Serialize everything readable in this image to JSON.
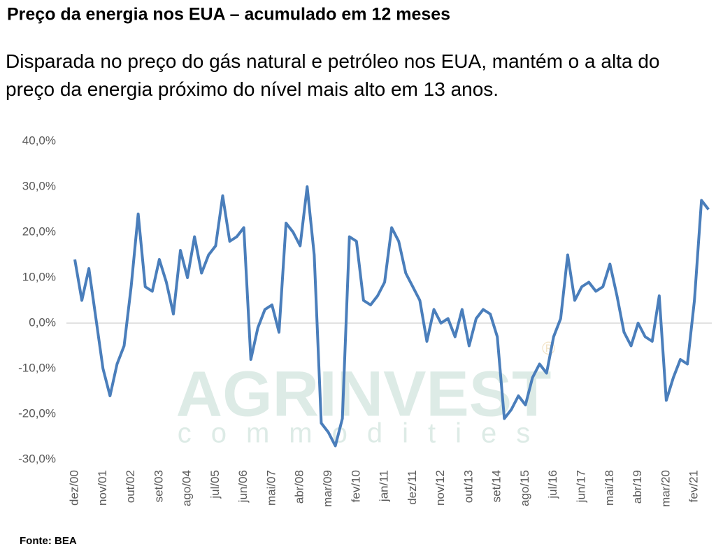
{
  "chart_data": {
    "type": "line",
    "title": "Preço da energia nos EUA – acumulado em 12 meses",
    "subtitle": "Disparada no preço do gás natural e petróleo nos EUA, mantém o a alta do preço da energia próximo do nível mais alto em 13 anos.",
    "source": "Fonte: BEA",
    "watermark": [
      "AGRINVEST",
      "commodities",
      "®"
    ],
    "categories": [
      "dez/00",
      null,
      null,
      null,
      "nov/01",
      null,
      null,
      null,
      "out/02",
      null,
      null,
      null,
      "set/03",
      null,
      null,
      null,
      "ago/04",
      null,
      null,
      null,
      "jul/05",
      null,
      null,
      null,
      "jun/06",
      null,
      null,
      null,
      "mai/07",
      null,
      null,
      null,
      "abr/08",
      null,
      null,
      null,
      "mar/09",
      null,
      null,
      null,
      "fev/10",
      null,
      null,
      null,
      "jan/11",
      null,
      null,
      null,
      "dez/11",
      null,
      null,
      null,
      "nov/12",
      null,
      null,
      null,
      "out/13",
      null,
      null,
      null,
      "set/14",
      null,
      null,
      null,
      "ago/15",
      null,
      null,
      null,
      "jul/16",
      null,
      null,
      null,
      "jun/17",
      null,
      null,
      null,
      "mai/18",
      null,
      null,
      null,
      "abr/19",
      null,
      null,
      null,
      "mar/20",
      null,
      null,
      null,
      "fev/21",
      null,
      null
    ],
    "values": [
      14,
      5,
      12,
      1,
      -10,
      -16,
      -9,
      -5,
      8,
      24,
      8,
      7,
      14,
      9,
      2,
      16,
      10,
      19,
      11,
      15,
      17,
      28,
      18,
      19,
      21,
      -8,
      -1,
      3,
      4,
      -2,
      22,
      20,
      17,
      30,
      15,
      -22,
      -24,
      -27,
      -21,
      19,
      18,
      5,
      4,
      6,
      9,
      21,
      18,
      11,
      8,
      5,
      -4,
      3,
      0,
      1,
      -3,
      3,
      -5,
      1,
      3,
      2,
      -3,
      -21,
      -19,
      -16,
      -18,
      -12,
      -9,
      -11,
      -3,
      1,
      15,
      5,
      8,
      9,
      7,
      8,
      13,
      6,
      -2,
      -5,
      0,
      -3,
      -4,
      6,
      -17,
      -12,
      -8,
      -9,
      5,
      27,
      25
    ],
    "color": "#4a7ebb",
    "ylim": [
      -30,
      40
    ],
    "yticks": [
      {
        "value": -30,
        "label": "-30,0%"
      },
      {
        "value": -20,
        "label": "-20,0%"
      },
      {
        "value": -10,
        "label": "-10,0%"
      },
      {
        "value": 0,
        "label": "0,0%"
      },
      {
        "value": 10,
        "label": "10,0%"
      },
      {
        "value": 20,
        "label": "20,0%"
      },
      {
        "value": 30,
        "label": "30,0%"
      },
      {
        "value": 40,
        "label": "40,0%"
      }
    ],
    "zero_line": true
  }
}
